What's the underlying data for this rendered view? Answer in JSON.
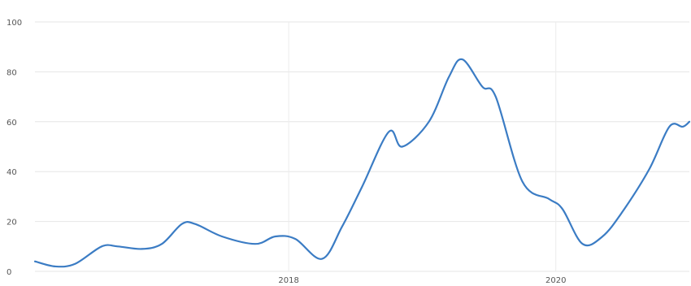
{
  "chart_data": {
    "type": "line",
    "title": "",
    "xlabel": "",
    "ylabel": "",
    "ylim": [
      0,
      100
    ],
    "xlim": [
      2016.1,
      2021.0
    ],
    "grid": true,
    "y_ticks": [
      {
        "value": 0,
        "label": "0"
      },
      {
        "value": 20,
        "label": "20"
      },
      {
        "value": 40,
        "label": "40"
      },
      {
        "value": 60,
        "label": "60"
      },
      {
        "value": 80,
        "label": "80"
      },
      {
        "value": 100,
        "label": "100"
      }
    ],
    "x_ticks": [
      {
        "value": 2018,
        "label": "2018"
      },
      {
        "value": 2020,
        "label": "2020"
      }
    ],
    "series": [
      {
        "color": "#3b7cc4",
        "x": [
          2016.1,
          2016.25,
          2016.4,
          2016.6,
          2016.72,
          2016.9,
          2017.05,
          2017.2,
          2017.3,
          2017.5,
          2017.75,
          2017.9,
          2018.05,
          2018.25,
          2018.4,
          2018.55,
          2018.75,
          2018.85,
          2019.05,
          2019.2,
          2019.3,
          2019.45,
          2019.55,
          2019.75,
          2019.95,
          2020.05,
          2020.2,
          2020.35,
          2020.5,
          2020.7,
          2020.85,
          2020.95,
          2021.0
        ],
        "y": [
          4,
          2,
          3,
          10,
          10,
          9,
          11,
          19,
          19,
          14,
          11,
          14,
          13,
          5,
          18,
          34,
          56,
          50,
          60,
          78,
          85,
          74,
          70,
          36,
          29,
          25,
          11,
          14,
          24,
          41,
          58,
          58,
          60
        ]
      }
    ]
  }
}
